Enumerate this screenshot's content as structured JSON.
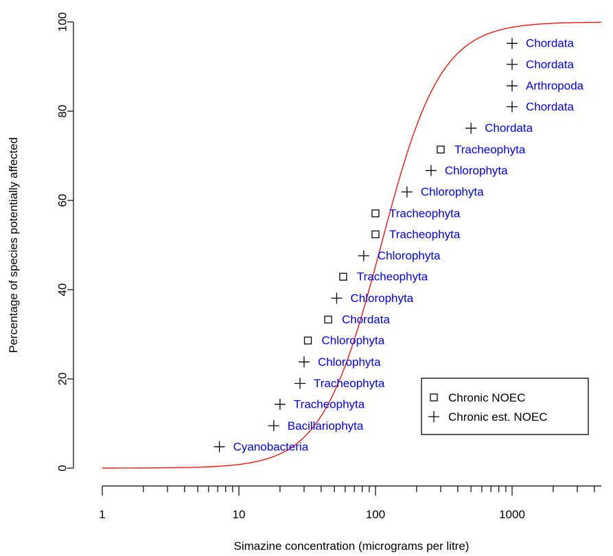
{
  "chart_data": {
    "type": "scatter",
    "title": "",
    "xlabel": "Simazine concentration (micrograms per litre)",
    "ylabel": "Percentage of species potentially affected",
    "x_scale": "log",
    "xlim": [
      1,
      4500
    ],
    "ylim": [
      0,
      100
    ],
    "x_ticks": [
      1,
      10,
      100,
      1000
    ],
    "x_tick_labels": [
      "1",
      "10",
      "100",
      "1000"
    ],
    "y_ticks": [
      0,
      20,
      40,
      60,
      80,
      100
    ],
    "y_tick_labels": [
      "0",
      "20",
      "40",
      "60",
      "80",
      "100"
    ],
    "grid": false,
    "legend": {
      "position": "bottom-right",
      "entries": [
        {
          "symbol": "square",
          "label": "Chronic NOEC"
        },
        {
          "symbol": "plus",
          "label": "Chronic est. NOEC"
        }
      ]
    },
    "colors": {
      "curve": "#ff0000",
      "label": "#0000ee",
      "point": "#000000"
    },
    "curve": {
      "type": "log-logistic",
      "median": 110,
      "slope": 2.0
    },
    "points": [
      {
        "x": 7.2,
        "y": 4.8,
        "symbol": "plus",
        "label": "Cyanobacteria"
      },
      {
        "x": 18,
        "y": 9.5,
        "symbol": "plus",
        "label": "Bacillariophyta"
      },
      {
        "x": 20,
        "y": 14.3,
        "symbol": "plus",
        "label": "Tracheophyta"
      },
      {
        "x": 28,
        "y": 19,
        "symbol": "plus",
        "label": "Tracheophyta"
      },
      {
        "x": 30,
        "y": 23.8,
        "symbol": "plus",
        "label": "Chlorophyta"
      },
      {
        "x": 32,
        "y": 28.6,
        "symbol": "square",
        "label": "Chlorophyta"
      },
      {
        "x": 45,
        "y": 33.3,
        "symbol": "square",
        "label": "Chordata"
      },
      {
        "x": 52,
        "y": 38.1,
        "symbol": "plus",
        "label": "Chlorophyta"
      },
      {
        "x": 58,
        "y": 42.9,
        "symbol": "square",
        "label": "Tracheophyta"
      },
      {
        "x": 82,
        "y": 47.6,
        "symbol": "plus",
        "label": "Chlorophyta"
      },
      {
        "x": 100,
        "y": 52.4,
        "symbol": "square",
        "label": "Tracheophyta"
      },
      {
        "x": 100,
        "y": 57.1,
        "symbol": "square",
        "label": "Tracheophyta"
      },
      {
        "x": 170,
        "y": 61.9,
        "symbol": "plus",
        "label": "Chlorophyta"
      },
      {
        "x": 255,
        "y": 66.7,
        "symbol": "plus",
        "label": "Chlorophyta"
      },
      {
        "x": 300,
        "y": 71.4,
        "symbol": "square",
        "label": "Tracheophyta"
      },
      {
        "x": 500,
        "y": 76.2,
        "symbol": "plus",
        "label": "Chordata"
      },
      {
        "x": 1000,
        "y": 81,
        "symbol": "plus",
        "label": "Chordata"
      },
      {
        "x": 1000,
        "y": 85.7,
        "symbol": "plus",
        "label": "Arthropoda"
      },
      {
        "x": 1000,
        "y": 90.5,
        "symbol": "plus",
        "label": "Chordata"
      },
      {
        "x": 1000,
        "y": 95.2,
        "symbol": "plus",
        "label": "Chordata"
      }
    ]
  }
}
